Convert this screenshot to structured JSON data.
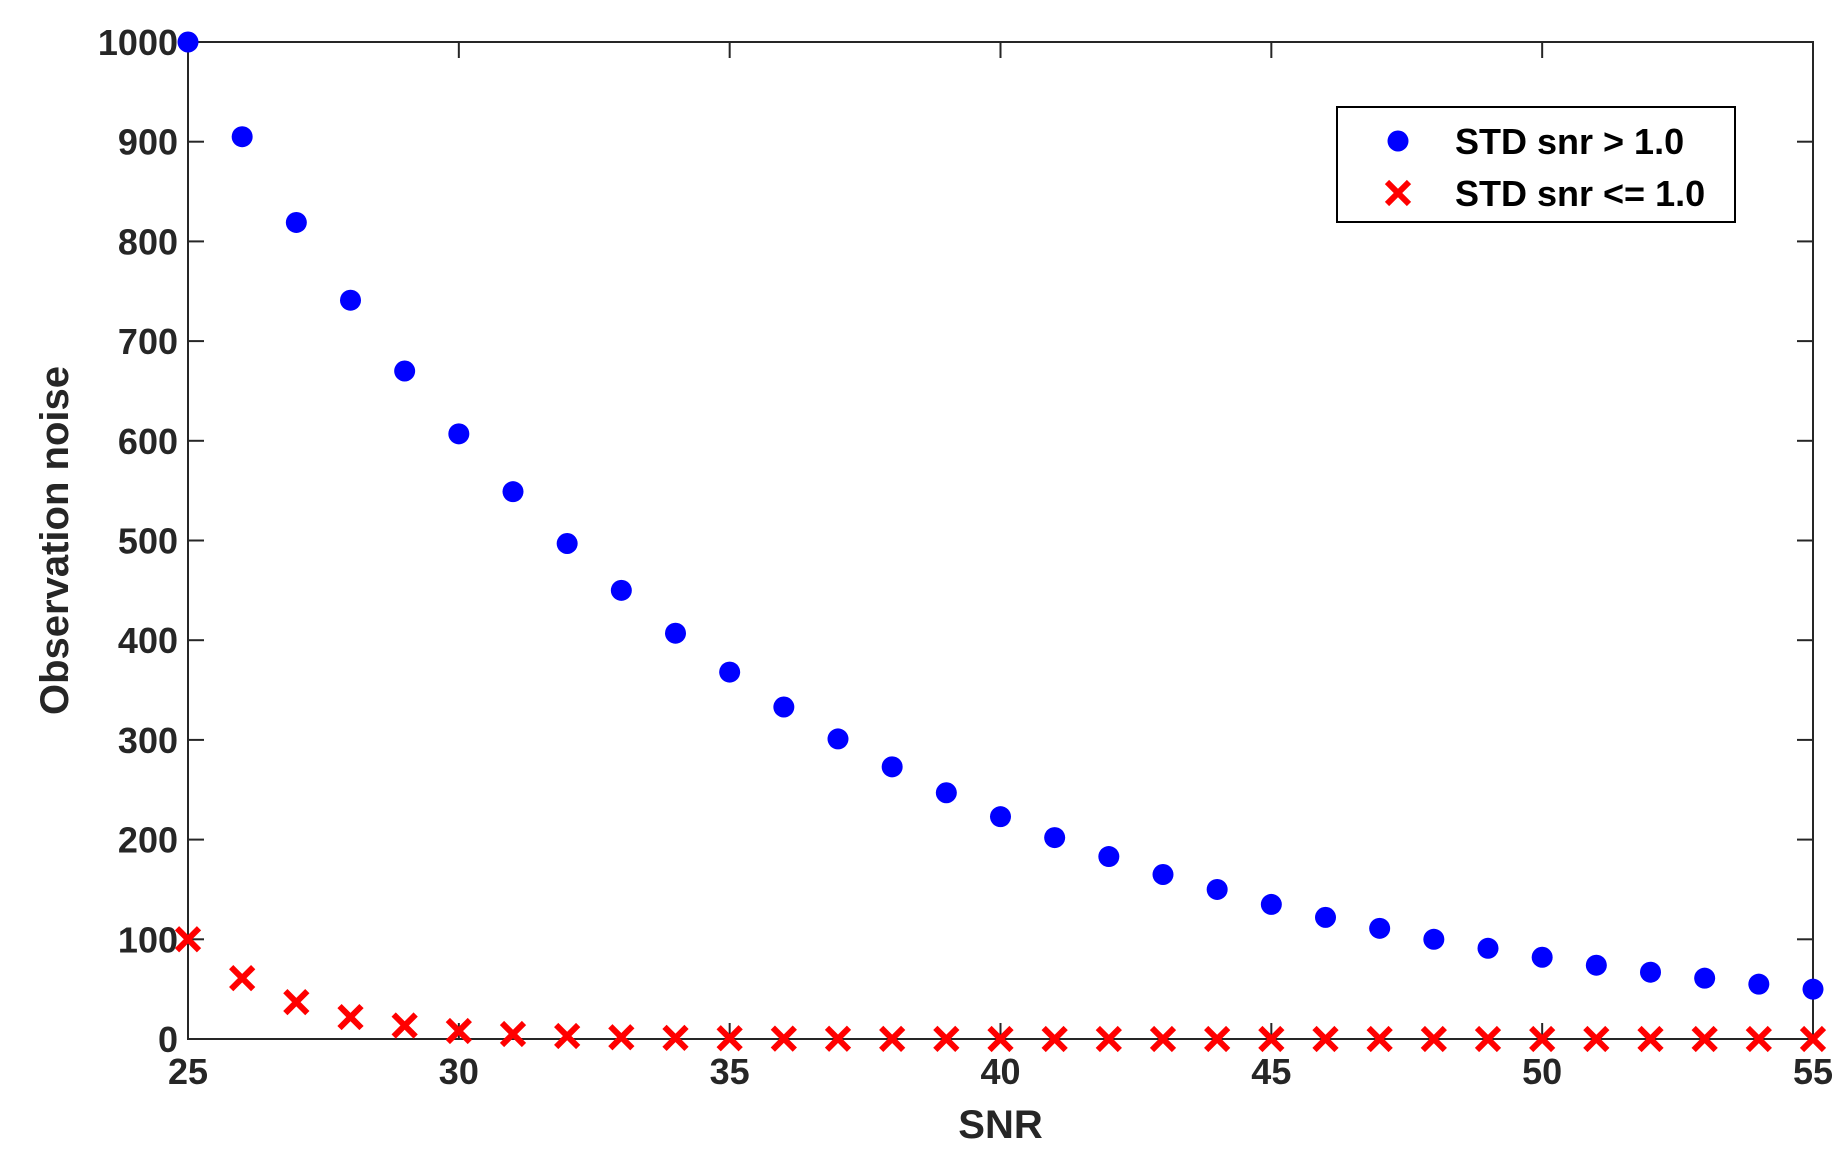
{
  "chart_data": {
    "type": "scatter",
    "title": "",
    "xlabel": "SNR",
    "ylabel": "Observation noise",
    "xlim": [
      25,
      55
    ],
    "ylim": [
      0,
      1000
    ],
    "xticks": [
      25,
      30,
      35,
      40,
      45,
      50,
      55
    ],
    "yticks": [
      0,
      100,
      200,
      300,
      400,
      500,
      600,
      700,
      800,
      900,
      1000
    ],
    "grid": false,
    "legend_position": "top-right",
    "x": [
      25,
      26,
      27,
      28,
      29,
      30,
      31,
      32,
      33,
      34,
      35,
      36,
      37,
      38,
      39,
      40,
      41,
      42,
      43,
      44,
      45,
      46,
      47,
      48,
      49,
      50,
      51,
      52,
      53,
      54,
      55
    ],
    "series": [
      {
        "name": "STD snr > 1.0",
        "marker": "circle",
        "color": "#0000ff",
        "values": [
          1000,
          905,
          819,
          741,
          670,
          607,
          549,
          497,
          450,
          407,
          368,
          333,
          301,
          273,
          247,
          223,
          202,
          183,
          165,
          150,
          135,
          122,
          111,
          100,
          91,
          82,
          74,
          67,
          61,
          55,
          50
        ]
      },
      {
        "name": "STD snr <= 1.0",
        "marker": "x",
        "color": "#ff0000",
        "values": [
          100,
          61,
          37,
          22,
          13.5,
          8,
          5,
          3,
          1.8,
          1.1,
          0.7,
          0.4,
          0.25,
          0.15,
          0.1,
          0.05,
          0.03,
          0.02,
          0.01,
          0.01,
          0,
          0,
          0,
          0,
          0,
          0,
          0,
          0,
          0,
          0,
          0
        ]
      }
    ]
  }
}
